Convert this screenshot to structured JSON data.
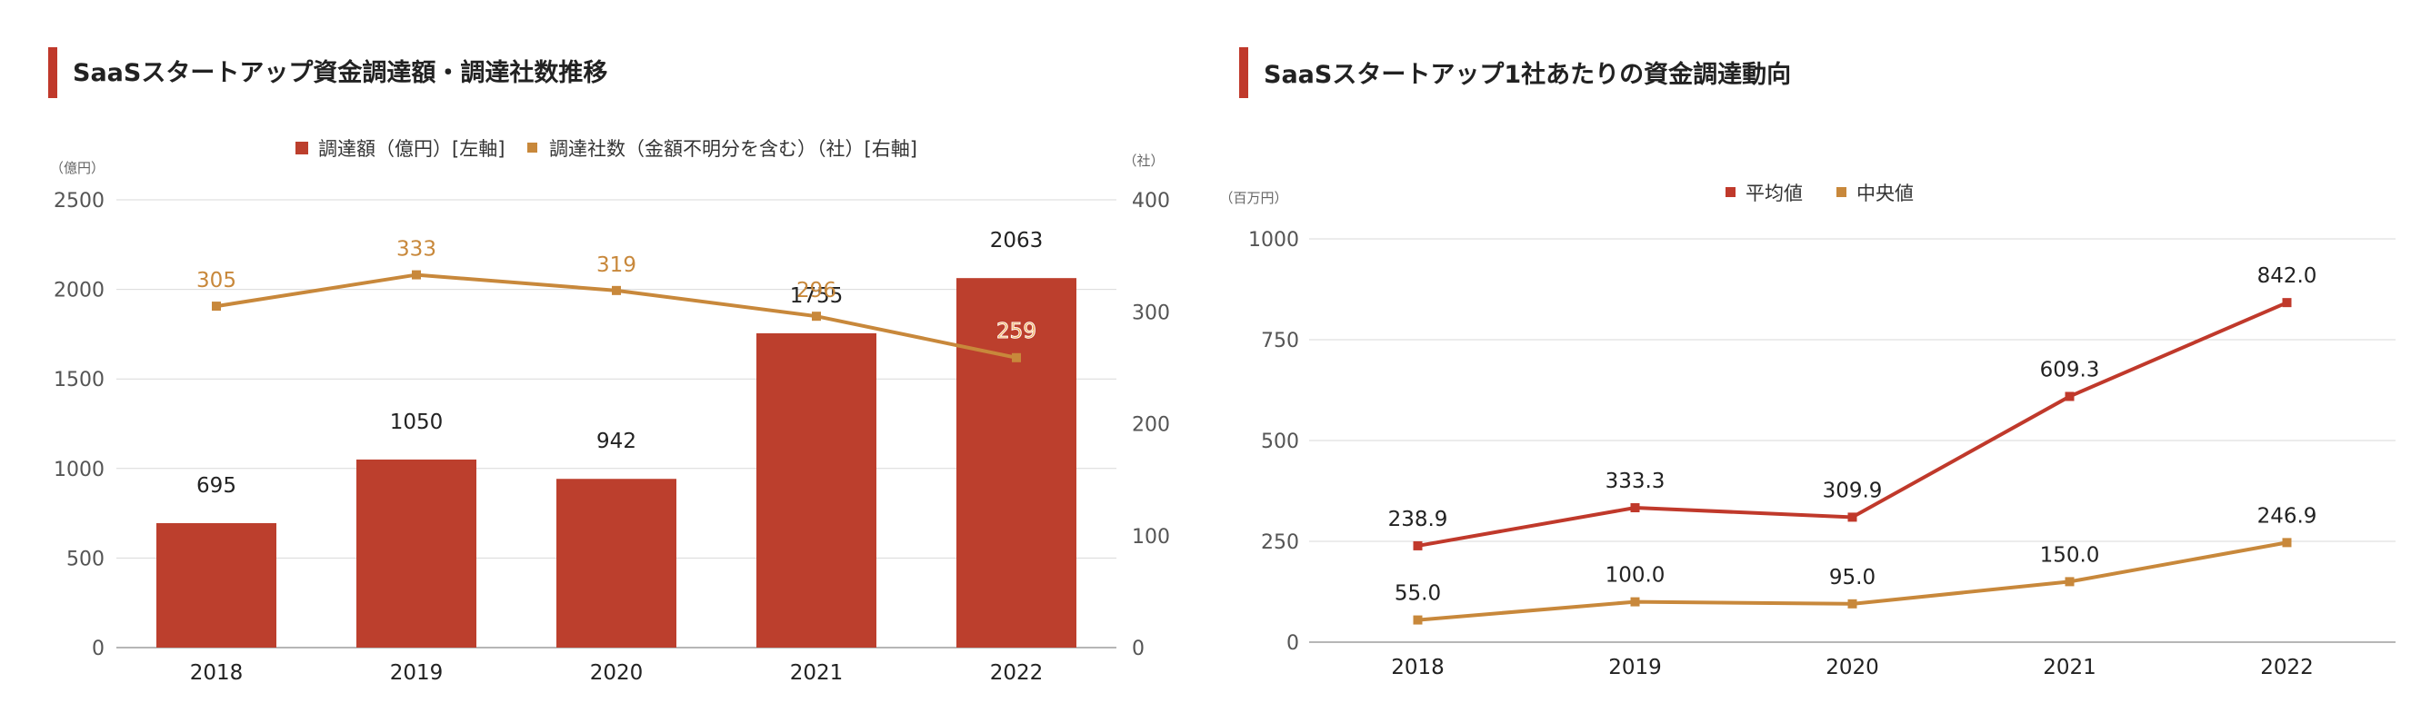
{
  "colors": {
    "bar": "#bc3f2d",
    "line_orange": "#c8883b",
    "mean": "#c0392b",
    "median": "#c8883b",
    "title_accent": "#c0392b",
    "grid": "#d9d9d9"
  },
  "chart_data": [
    {
      "type": "bar",
      "title": "SaaSスタートアップ資金調達額・調達社数推移",
      "categories": [
        "2018",
        "2019",
        "2020",
        "2021",
        "2022"
      ],
      "y_unit_left": "（億円）",
      "y_unit_right": "（社）",
      "ylim": [
        0,
        2500
      ],
      "yticks": [
        0,
        500,
        1000,
        1500,
        2000,
        2500
      ],
      "ylim_right": [
        0,
        400
      ],
      "yticks_right": [
        0,
        100,
        200,
        300,
        400
      ],
      "legend_position": "top",
      "grid": true,
      "series": [
        {
          "name": "調達額（億円）[左軸]",
          "type": "bar",
          "axis": "left",
          "values": [
            695,
            1050,
            942,
            1755,
            2063
          ],
          "labels": [
            "695",
            "1050",
            "942",
            "1755",
            "2063"
          ]
        },
        {
          "name": "調達社数（金額不明分を含む）（社）[右軸]",
          "type": "line",
          "axis": "right",
          "values": [
            305,
            333,
            319,
            296,
            259
          ],
          "labels": [
            "305",
            "333",
            "319",
            "296",
            "259"
          ]
        }
      ]
    },
    {
      "type": "line",
      "title": "SaaSスタートアップ1社あたりの資金調達動向",
      "categories": [
        "2018",
        "2019",
        "2020",
        "2021",
        "2022"
      ],
      "y_unit": "（百万円）",
      "ylim": [
        0,
        1000
      ],
      "yticks": [
        0,
        250,
        500,
        750,
        1000
      ],
      "legend_position": "top",
      "grid": true,
      "series": [
        {
          "name": "平均値",
          "values": [
            238.9,
            333.3,
            309.9,
            609.3,
            842.0
          ],
          "labels": [
            "238.9",
            "333.3",
            "309.9",
            "609.3",
            "842.0"
          ]
        },
        {
          "name": "中央値",
          "values": [
            55.0,
            100.0,
            95.0,
            150.0,
            246.9
          ],
          "labels": [
            "55.0",
            "100.0",
            "95.0",
            "150.0",
            "246.9"
          ]
        }
      ]
    }
  ]
}
